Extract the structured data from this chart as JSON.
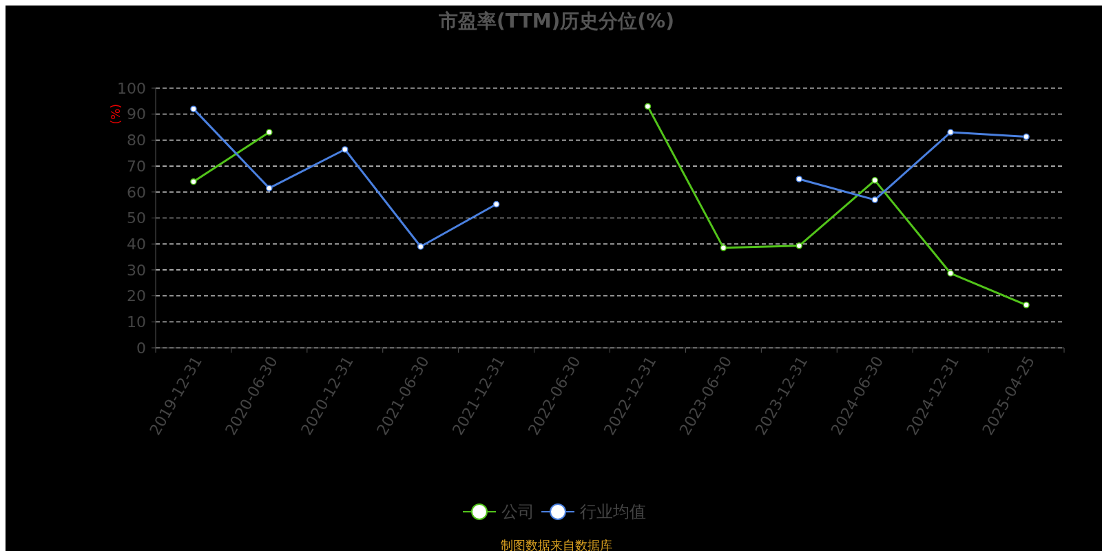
{
  "chart_data": {
    "type": "line",
    "title": "市盈率(TTM)历史分位(%)",
    "ylabel": "(%)",
    "categories": [
      "2019-12-31",
      "2020-06-30",
      "2020-12-31",
      "2021-06-30",
      "2021-12-31",
      "2022-06-30",
      "2022-12-31",
      "2023-06-30",
      "2023-12-31",
      "2024-06-30",
      "2024-12-31",
      "2025-04-25"
    ],
    "series": [
      {
        "name": "公司",
        "color": "#52c41a",
        "values": [
          64,
          83,
          null,
          null,
          null,
          null,
          93,
          38.5,
          39.3,
          64.5,
          28.7,
          16.5
        ]
      },
      {
        "name": "行业均值",
        "color": "#4a80e0",
        "values": [
          92,
          61.5,
          76.4,
          39,
          55.3,
          null,
          null,
          null,
          65,
          57,
          83,
          81.3
        ]
      }
    ],
    "ylim": [
      0,
      100
    ],
    "yticks": [
      0,
      10,
      20,
      30,
      40,
      50,
      60,
      70,
      80,
      90,
      100
    ],
    "grid": "y",
    "legend": "bottom",
    "marker": "circle",
    "line_style": "solid",
    "annotations": [
      "制图数据来自数据库"
    ]
  }
}
